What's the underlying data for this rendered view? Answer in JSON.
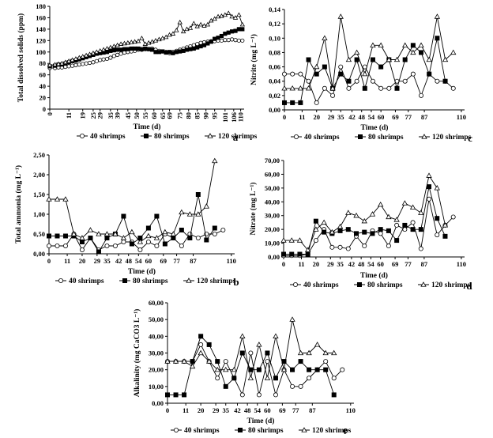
{
  "chart_data": [
    {
      "id": "a",
      "type": "line",
      "panel_label": "a",
      "xlabel": "Time (d)",
      "ylabel": "Total dissolved solids  (ppm)",
      "ylim": [
        0,
        180
      ],
      "yticks": [
        0,
        20,
        40,
        60,
        80,
        100,
        120,
        140,
        160,
        180
      ],
      "xlim": [
        0,
        112
      ],
      "xticks": [
        0,
        11,
        19,
        25,
        29,
        35,
        39,
        45,
        50,
        55,
        60,
        65,
        69,
        75,
        80,
        85,
        90,
        95,
        101,
        106,
        110
      ],
      "ydecimals": 0,
      "legend": [
        "40 shrimps",
        "80 shrimps",
        "120 shrimps"
      ],
      "series": [
        {
          "name": "40 shrimps",
          "marker": "circle",
          "x": [
            0,
            3,
            5,
            7,
            9,
            11,
            13,
            15,
            17,
            19,
            21,
            23,
            25,
            27,
            29,
            31,
            33,
            35,
            37,
            39,
            41,
            43,
            45,
            47,
            49,
            51,
            53,
            55,
            57,
            59,
            61,
            63,
            65,
            67,
            69,
            71,
            73,
            75,
            77,
            79,
            81,
            83,
            85,
            87,
            89,
            91,
            93,
            95,
            97,
            99,
            101,
            103,
            105,
            107,
            109,
            111
          ],
          "y": [
            72,
            72,
            73,
            73,
            74,
            75,
            76,
            77,
            78,
            79,
            80,
            81,
            82,
            84,
            86,
            87,
            88,
            90,
            93,
            95,
            97,
            99,
            100,
            101,
            102,
            104,
            104,
            105,
            105,
            106,
            104,
            102,
            101,
            100,
            98,
            100,
            102,
            104,
            106,
            108,
            110,
            112,
            114,
            116,
            117,
            118,
            119,
            119,
            120,
            120,
            121,
            121,
            122,
            121,
            120,
            120
          ]
        },
        {
          "name": "80 shrimps",
          "marker": "square",
          "x": [
            0,
            3,
            5,
            7,
            9,
            11,
            13,
            15,
            17,
            19,
            21,
            23,
            25,
            27,
            29,
            31,
            33,
            35,
            37,
            39,
            41,
            43,
            45,
            47,
            49,
            51,
            53,
            55,
            57,
            59,
            61,
            63,
            65,
            67,
            69,
            71,
            73,
            75,
            77,
            79,
            81,
            83,
            85,
            87,
            89,
            91,
            93,
            95,
            97,
            99,
            101,
            103,
            105,
            107,
            109,
            111
          ],
          "y": [
            75,
            76,
            78,
            78,
            80,
            82,
            84,
            85,
            87,
            89,
            91,
            93,
            95,
            97,
            98,
            99,
            100,
            102,
            103,
            104,
            104,
            105,
            105,
            106,
            106,
            106,
            105,
            106,
            105,
            104,
            100,
            100,
            101,
            99,
            100,
            98,
            100,
            101,
            102,
            104,
            105,
            106,
            108,
            110,
            112,
            115,
            118,
            123,
            125,
            128,
            132,
            134,
            136,
            137,
            140,
            140
          ]
        },
        {
          "name": "120 shrimps",
          "marker": "triangle",
          "x": [
            0,
            3,
            5,
            7,
            9,
            11,
            13,
            15,
            17,
            19,
            21,
            23,
            25,
            27,
            29,
            31,
            33,
            35,
            37,
            39,
            41,
            43,
            45,
            47,
            49,
            51,
            53,
            55,
            57,
            59,
            61,
            63,
            65,
            67,
            69,
            71,
            73,
            75,
            77,
            79,
            81,
            83,
            85,
            87,
            89,
            91,
            93,
            95,
            97,
            99,
            101,
            103,
            105,
            107,
            109,
            111
          ],
          "y": [
            77,
            78,
            79,
            80,
            82,
            84,
            86,
            88,
            90,
            92,
            94,
            96,
            98,
            100,
            102,
            104,
            106,
            108,
            110,
            112,
            114,
            115,
            116,
            117,
            118,
            119,
            124,
            114,
            116,
            118,
            120,
            122,
            124,
            126,
            130,
            132,
            138,
            152,
            136,
            140,
            142,
            150,
            145,
            148,
            146,
            148,
            155,
            158,
            162,
            163,
            165,
            168,
            162,
            160,
            165,
            148
          ]
        }
      ]
    },
    {
      "id": "c",
      "type": "line",
      "panel_label": "c",
      "xlabel": "Time (d)",
      "ylabel": "Nitrite (mg L⁻¹)",
      "ylim": [
        0,
        0.14
      ],
      "yticks": [
        0,
        0.02,
        0.04,
        0.06,
        0.08,
        0.1,
        0.12,
        0.14
      ],
      "xlim": [
        0,
        112
      ],
      "xticks": [
        0,
        11,
        20,
        29,
        35,
        42,
        48,
        54,
        60,
        69,
        77,
        87,
        110
      ],
      "ydecimals": 2,
      "legend": [
        "40 shrimps",
        "80 shrimps",
        "120 shrimps"
      ],
      "series": [
        {
          "name": "40 shrimps",
          "marker": "circle",
          "x": [
            0,
            5,
            10,
            15,
            20,
            25,
            30,
            35,
            40,
            45,
            50,
            55,
            60,
            65,
            70,
            75,
            80,
            85,
            90,
            95,
            100,
            105
          ],
          "y": [
            0.05,
            0.05,
            0.05,
            0.04,
            0.01,
            0.03,
            0.02,
            0.06,
            0.03,
            0.04,
            0.06,
            0.04,
            0.03,
            0.03,
            0.04,
            0.04,
            0.05,
            0.02,
            0.05,
            0.04,
            0.04,
            0.03
          ]
        },
        {
          "name": "80 shrimps",
          "marker": "square",
          "x": [
            0,
            5,
            10,
            15,
            20,
            25,
            30,
            35,
            40,
            45,
            50,
            55,
            60,
            65,
            70,
            75,
            80,
            85,
            90,
            95,
            100
          ],
          "y": [
            0.01,
            0.01,
            0.01,
            0.07,
            0.05,
            0.06,
            0.03,
            0.05,
            0.04,
            0.07,
            0.03,
            0.07,
            0.06,
            0.07,
            0.03,
            0.07,
            0.09,
            0.08,
            0.05,
            0.1,
            0.04
          ]
        },
        {
          "name": "120 shrimps",
          "marker": "triangle",
          "x": [
            0,
            5,
            10,
            15,
            20,
            25,
            30,
            35,
            40,
            45,
            50,
            55,
            60,
            65,
            70,
            75,
            80,
            85,
            90,
            95,
            100,
            105
          ],
          "y": [
            0.03,
            0.03,
            0.03,
            0.03,
            0.06,
            0.1,
            0.03,
            0.13,
            0.07,
            0.08,
            0.05,
            0.09,
            0.09,
            0.07,
            0.07,
            0.09,
            0.08,
            0.09,
            0.07,
            0.13,
            0.07,
            0.08
          ]
        }
      ]
    },
    {
      "id": "b",
      "type": "line",
      "panel_label": "b",
      "xlabel": "Time (d)",
      "ylabel": "Total ammonia (mg L⁻¹)",
      "ylim": [
        0,
        2.5
      ],
      "yticks": [
        0,
        0.5,
        1.0,
        1.5,
        2.0,
        2.5
      ],
      "xlim": [
        0,
        112
      ],
      "xticks": [
        0,
        11,
        20,
        29,
        35,
        42,
        48,
        54,
        60,
        69,
        77,
        87,
        110
      ],
      "ydecimals": 2,
      "legend": [
        "40 shrimps",
        "80 shrimps",
        "120 shrimps"
      ],
      "series": [
        {
          "name": "40 shrimps",
          "marker": "circle",
          "x": [
            0,
            5,
            10,
            15,
            20,
            25,
            30,
            35,
            40,
            45,
            50,
            55,
            60,
            65,
            70,
            75,
            80,
            85,
            90,
            95,
            100,
            105
          ],
          "y": [
            0.2,
            0.2,
            0.2,
            0.5,
            0.1,
            0.4,
            0.1,
            0.2,
            0.2,
            0.3,
            0.3,
            0.1,
            0.3,
            0.2,
            0.5,
            0.4,
            0.2,
            0.5,
            0.4,
            0.5,
            0.5,
            0.6
          ]
        },
        {
          "name": "80 shrimps",
          "marker": "square",
          "x": [
            0,
            5,
            10,
            15,
            20,
            25,
            30,
            35,
            40,
            45,
            50,
            55,
            60,
            65,
            70,
            75,
            80,
            85,
            90,
            95,
            100
          ],
          "y": [
            0.45,
            0.45,
            0.45,
            0.45,
            0.3,
            0.4,
            0.05,
            0.4,
            0.5,
            0.95,
            0.25,
            0.4,
            0.65,
            0.95,
            0.25,
            0.4,
            0.6,
            0.4,
            1.5,
            0.35,
            0.65
          ]
        },
        {
          "name": "120 shrimps",
          "marker": "triangle",
          "x": [
            0,
            5,
            10,
            15,
            20,
            25,
            30,
            35,
            40,
            45,
            50,
            55,
            60,
            65,
            70,
            75,
            80,
            85,
            90,
            95,
            100
          ],
          "y": [
            1.38,
            1.38,
            1.38,
            0.5,
            0.4,
            0.6,
            0.5,
            0.5,
            0.5,
            0.4,
            0.55,
            0.3,
            0.45,
            0.4,
            0.55,
            0.5,
            1.05,
            1.0,
            1.0,
            1.2,
            2.35
          ]
        }
      ]
    },
    {
      "id": "d",
      "type": "line",
      "panel_label": "d",
      "xlabel": "Time (d)",
      "ylabel": "Nitrate (mg L⁻¹)",
      "ylim": [
        0,
        70
      ],
      "yticks": [
        0,
        10,
        20,
        30,
        40,
        50,
        60,
        70
      ],
      "xlim": [
        0,
        112
      ],
      "xticks": [
        0,
        11,
        20,
        29,
        35,
        42,
        48,
        54,
        60,
        69,
        77,
        87,
        110
      ],
      "ydecimals": 2,
      "legend": [
        "40 shrimps",
        "80 shrimps",
        "120 shrimps"
      ],
      "series": [
        {
          "name": "40 shrimps",
          "marker": "circle",
          "x": [
            0,
            5,
            10,
            15,
            20,
            25,
            30,
            35,
            40,
            45,
            50,
            55,
            60,
            65,
            70,
            75,
            80,
            85,
            90,
            95,
            100,
            105
          ],
          "y": [
            1,
            1,
            1,
            2,
            12,
            20,
            7,
            7,
            6,
            15,
            8,
            19,
            17,
            8,
            23,
            20,
            25,
            6,
            42,
            16,
            23,
            29
          ]
        },
        {
          "name": "80 shrimps",
          "marker": "square",
          "x": [
            0,
            5,
            10,
            15,
            20,
            25,
            30,
            35,
            40,
            45,
            50,
            55,
            60,
            65,
            70,
            75,
            80,
            85,
            90,
            95,
            100
          ],
          "y": [
            2,
            2,
            2,
            2,
            26,
            18,
            17,
            19,
            20,
            17,
            18,
            17,
            20,
            19,
            12,
            23,
            20,
            20,
            51,
            28,
            15
          ]
        },
        {
          "name": "120 shrimps",
          "marker": "triangle",
          "x": [
            0,
            5,
            10,
            15,
            20,
            25,
            30,
            35,
            40,
            45,
            50,
            55,
            60,
            65,
            70,
            75,
            80,
            85,
            90,
            95,
            100
          ],
          "y": [
            12,
            12,
            12,
            5,
            20,
            25,
            18,
            22,
            32,
            30,
            26,
            31,
            38,
            29,
            27,
            39,
            36,
            32,
            59,
            50,
            23
          ]
        }
      ]
    },
    {
      "id": "e",
      "type": "line",
      "panel_label": "e",
      "xlabel": "Time (d)",
      "ylabel": "Alkalinity (mg CaCO3 L⁻¹)",
      "ylim": [
        0,
        60
      ],
      "yticks": [
        0,
        10,
        20,
        30,
        40,
        50,
        60
      ],
      "xlim": [
        0,
        112
      ],
      "xticks": [
        0,
        11,
        20,
        29,
        35,
        42,
        48,
        54,
        60,
        69,
        77,
        87,
        110
      ],
      "ydecimals": 2,
      "legend": [
        "40 shrimps",
        "80 shrimps",
        "120 shrimps"
      ],
      "series": [
        {
          "name": "40 shrimps",
          "marker": "circle",
          "x": [
            0,
            5,
            10,
            15,
            20,
            25,
            30,
            35,
            40,
            45,
            50,
            55,
            60,
            65,
            70,
            75,
            80,
            85,
            90,
            95,
            100,
            105
          ],
          "y": [
            25,
            25,
            25,
            25,
            35,
            25,
            15,
            25,
            15,
            5,
            30,
            5,
            25,
            5,
            20,
            10,
            10,
            15,
            20,
            25,
            15,
            20
          ]
        },
        {
          "name": "80 shrimps",
          "marker": "square",
          "x": [
            0,
            5,
            10,
            15,
            20,
            25,
            30,
            35,
            40,
            45,
            50,
            55,
            60,
            65,
            70,
            75,
            80,
            85,
            90,
            95,
            100
          ],
          "y": [
            5,
            5,
            5,
            25,
            40,
            35,
            25,
            10,
            15,
            30,
            20,
            20,
            30,
            15,
            25,
            20,
            25,
            20,
            20,
            20,
            5
          ]
        },
        {
          "name": "120 shrimps",
          "marker": "triangle",
          "x": [
            0,
            5,
            10,
            15,
            20,
            25,
            30,
            35,
            40,
            45,
            50,
            55,
            60,
            65,
            70,
            75,
            80,
            85,
            90,
            95,
            100
          ],
          "y": [
            25,
            25,
            25,
            22,
            30,
            25,
            20,
            20,
            20,
            40,
            15,
            35,
            15,
            40,
            20,
            50,
            30,
            30,
            35,
            30,
            30
          ]
        }
      ]
    }
  ]
}
